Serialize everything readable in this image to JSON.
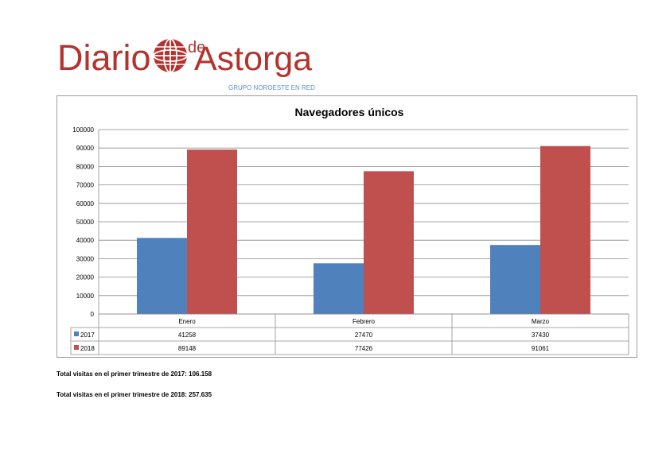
{
  "logo": {
    "brand_main": "Diario",
    "brand_de": "de",
    "brand_second": "Astorga",
    "tagline": "GRUPO NOROESTE EN RED",
    "brand_color": "#b5332e",
    "tagline_color": "#5b8fd6"
  },
  "chart_data": {
    "type": "bar",
    "title": "Navegadores únicos",
    "categories": [
      "Enero",
      "Febrero",
      "Marzo"
    ],
    "series": [
      {
        "name": "2017",
        "values": [
          41258,
          27470,
          37430
        ],
        "color": "#4f81bd"
      },
      {
        "name": "2018",
        "values": [
          89148,
          77426,
          91061
        ],
        "color": "#c0504d"
      }
    ],
    "table_values": [
      [
        "41258",
        "27470",
        "37430"
      ],
      [
        "89148",
        "77426",
        "91061"
      ]
    ],
    "ylim": [
      0,
      100000
    ],
    "yticks": [
      0,
      10000,
      20000,
      30000,
      40000,
      50000,
      60000,
      70000,
      80000,
      90000,
      100000
    ],
    "grid": true,
    "legend": "data-table-left"
  },
  "totals": {
    "line_2017": "Total visitas en el primer trimestre de 2017: 106.158",
    "line_2018": "Total visitas en el primer trimestre de 2018: 257.635"
  }
}
